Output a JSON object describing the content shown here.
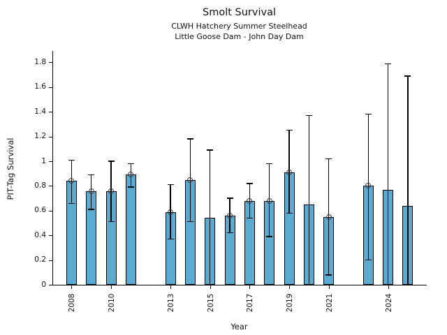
{
  "chart_data": {
    "type": "bar",
    "title": "Smolt Survival",
    "subtitle1": "CLWH Hatchery Summer Steelhead",
    "subtitle2": "Little Goose Dam - John Day Dam",
    "xlabel": "Year",
    "ylabel": "PIT-Tag Survival",
    "ylim": [
      0,
      1.893
    ],
    "xlim": [
      2007.03,
      2025.92
    ],
    "grid": false,
    "legend": "none",
    "bar_color": "#5aaad2",
    "bar_edge_color": "#000000",
    "error_color": "#000000",
    "marker_style": "open-circle",
    "marker_color": "#3e3e3e",
    "yticks": [
      0,
      0.2,
      0.4,
      0.6,
      0.8,
      1,
      1.2,
      1.4,
      1.6,
      1.8
    ],
    "ytick_labels": [
      "0",
      "0.2",
      "0.4",
      "0.6",
      "0.8",
      "1",
      "1.2",
      "1.4",
      "1.6",
      "1.8"
    ],
    "xticks": [
      2008,
      2010,
      2013,
      2015,
      2017,
      2019,
      2021,
      2024
    ],
    "xtick_labels": [
      "2008",
      "2010",
      "2013",
      "2015",
      "2017",
      "2019",
      "2021",
      "2024"
    ],
    "series": [
      {
        "name": "PIT-Tag Survival",
        "points": [
          {
            "year": 2008,
            "value": 0.84,
            "ci_low": 0.66,
            "ci_high": 1.01,
            "marker": true,
            "cap_low": true
          },
          {
            "year": 2009,
            "value": 0.76,
            "ci_low": 0.61,
            "ci_high": 0.89,
            "marker": true,
            "cap_low": true
          },
          {
            "year": 2010,
            "value": 0.76,
            "ci_low": 0.51,
            "ci_high": 1.0,
            "marker": true,
            "cap_low": true
          },
          {
            "year": 2011,
            "value": 0.89,
            "ci_low": 0.79,
            "ci_high": 0.98,
            "marker": true,
            "cap_low": true
          },
          {
            "year": 2013,
            "value": 0.59,
            "ci_low": 0.37,
            "ci_high": 0.81,
            "marker": true,
            "cap_low": true
          },
          {
            "year": 2014,
            "value": 0.85,
            "ci_low": 0.51,
            "ci_high": 1.18,
            "marker": true,
            "cap_low": true
          },
          {
            "year": 2015,
            "value": 0.54,
            "ci_low": 0.0,
            "ci_high": 1.09,
            "marker": false,
            "cap_low": false
          },
          {
            "year": 2016,
            "value": 0.56,
            "ci_low": 0.42,
            "ci_high": 0.7,
            "marker": true,
            "cap_low": true
          },
          {
            "year": 2017,
            "value": 0.68,
            "ci_low": 0.54,
            "ci_high": 0.82,
            "marker": true,
            "cap_low": true
          },
          {
            "year": 2018,
            "value": 0.68,
            "ci_low": 0.39,
            "ci_high": 0.98,
            "marker": true,
            "cap_low": true
          },
          {
            "year": 2019,
            "value": 0.91,
            "ci_low": 0.58,
            "ci_high": 1.25,
            "marker": true,
            "cap_low": true
          },
          {
            "year": 2020,
            "value": 0.65,
            "ci_low": 0.0,
            "ci_high": 1.37,
            "marker": false,
            "cap_low": false
          },
          {
            "year": 2021,
            "value": 0.55,
            "ci_low": 0.08,
            "ci_high": 1.02,
            "marker": true,
            "cap_low": true
          },
          {
            "year": 2023,
            "value": 0.8,
            "ci_low": 0.2,
            "ci_high": 1.38,
            "marker": true,
            "cap_low": true
          },
          {
            "year": 2024,
            "value": 0.77,
            "ci_low": 0.0,
            "ci_high": 1.79,
            "marker": false,
            "cap_low": false
          },
          {
            "year": 2025,
            "value": 0.64,
            "ci_low": 0.0,
            "ci_high": 1.69,
            "marker": false,
            "cap_low": false
          }
        ]
      }
    ]
  }
}
